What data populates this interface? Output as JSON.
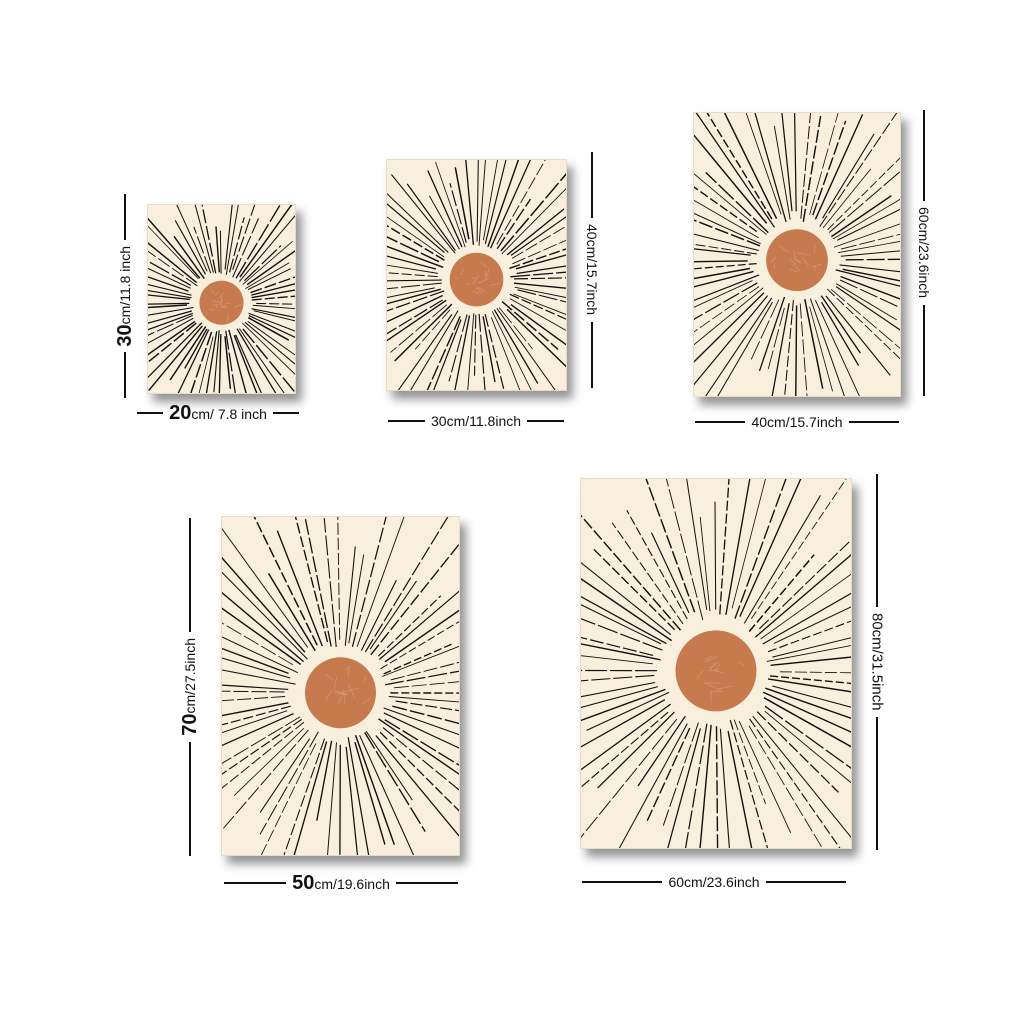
{
  "posters": [
    {
      "name": "poster-20x30",
      "width_label_num": "20",
      "width_label_unit": "cm/ 7.8 inch",
      "height_label_num": "30",
      "height_label_unit": "cm/11.8 inch"
    },
    {
      "name": "poster-30x40",
      "width_label": "30cm/11.8inch",
      "height_label": "40cm/15.7inch"
    },
    {
      "name": "poster-40x60",
      "width_label": "40cm/15.7inch",
      "height_label": "60cm/23.6inch"
    },
    {
      "name": "poster-50x70",
      "width_label_num": "50",
      "width_label_unit": "cm/19.6inch",
      "height_label_num": "70",
      "height_label_unit": "cm/27.5inch"
    },
    {
      "name": "poster-60x80",
      "width_label": "60cm/23.6inch",
      "height_label": "80cm/31.5inch"
    }
  ],
  "colors": {
    "background": "#ffffff",
    "paper": "#f8efdd",
    "sun": "#c77a4e",
    "rays": "#111111"
  }
}
